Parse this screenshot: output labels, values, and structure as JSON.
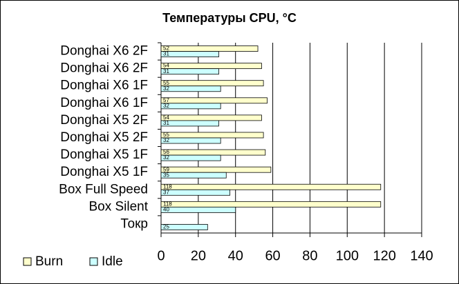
{
  "chart_data": {
    "type": "bar",
    "orientation": "horizontal",
    "title": "Температуры  CPU, °C",
    "categories": [
      "Donghai X6 2F",
      "Donghai X6 2F",
      "Donghai X6 1F",
      "Donghai X6 1F",
      "Donghai X5 2F",
      "Donghai X5 2F",
      "Donghai X5 1F",
      "Donghai X5 1F",
      "Box Full Speed",
      "Box Silent",
      "Токр"
    ],
    "series": [
      {
        "name": "Burn",
        "color": "#ffffcc",
        "values": [
          52,
          54,
          55,
          57,
          54,
          55,
          56,
          59,
          118,
          118,
          null
        ]
      },
      {
        "name": "Idle",
        "color": "#ccffff",
        "values": [
          31,
          31,
          32,
          32,
          31,
          32,
          32,
          35,
          37,
          40,
          25
        ]
      }
    ],
    "xlim": [
      0,
      140
    ],
    "xticks": [
      0,
      20,
      40,
      60,
      80,
      100,
      120,
      140
    ],
    "grid": true,
    "legend": "bottom-left"
  }
}
